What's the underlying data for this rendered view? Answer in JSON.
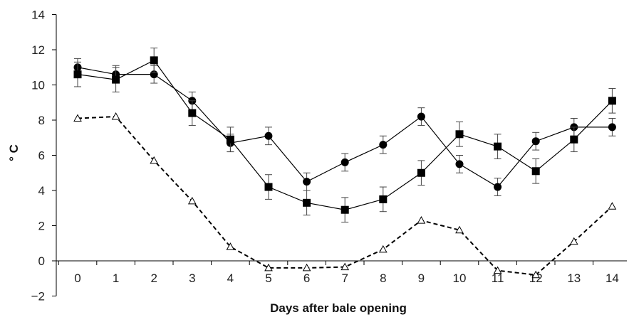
{
  "chart_data": {
    "type": "line",
    "title": "",
    "xlabel": "Days after bale opening",
    "ylabel": "° C",
    "xlim": [
      0,
      14
    ],
    "ylim": [
      -2,
      14
    ],
    "x_ticks": [
      0,
      1,
      2,
      3,
      4,
      5,
      6,
      7,
      8,
      9,
      10,
      11,
      12,
      13,
      14
    ],
    "y_ticks": [
      -2,
      0,
      2,
      4,
      6,
      8,
      10,
      12,
      14
    ],
    "y_tick_labels": [
      "−2",
      "0",
      "2",
      "4",
      "6",
      "8",
      "10",
      "12",
      "14"
    ],
    "grid": false,
    "legend": "none",
    "x": [
      0,
      1,
      2,
      3,
      4,
      5,
      6,
      7,
      8,
      9,
      10,
      11,
      12,
      13,
      14
    ],
    "series": [
      {
        "marker": "circle",
        "line_style": "solid",
        "color": "#000000",
        "values": [
          11.0,
          10.6,
          10.6,
          9.1,
          6.7,
          7.1,
          4.5,
          5.6,
          6.6,
          8.2,
          5.5,
          4.2,
          6.8,
          7.6,
          7.6
        ],
        "error": [
          0.5,
          0.5,
          0.5,
          0.5,
          0.5,
          0.5,
          0.5,
          0.5,
          0.5,
          0.5,
          0.5,
          0.5,
          0.5,
          0.5,
          0.5
        ]
      },
      {
        "marker": "square",
        "line_style": "solid",
        "color": "#000000",
        "values": [
          10.6,
          10.3,
          11.4,
          8.4,
          6.9,
          4.2,
          3.3,
          2.9,
          3.5,
          5.0,
          7.2,
          6.5,
          5.1,
          6.9,
          9.1
        ],
        "error": [
          0.7,
          0.7,
          0.7,
          0.7,
          0.7,
          0.7,
          0.7,
          0.7,
          0.7,
          0.7,
          0.7,
          0.7,
          0.7,
          0.7,
          0.7
        ]
      },
      {
        "marker": "open-triangle",
        "line_style": "dashed",
        "color": "#000000",
        "values": [
          8.1,
          8.2,
          5.7,
          3.4,
          0.8,
          -0.4,
          -0.4,
          -0.35,
          0.65,
          2.3,
          1.75,
          -0.55,
          -0.8,
          1.1,
          3.1
        ]
      }
    ]
  }
}
